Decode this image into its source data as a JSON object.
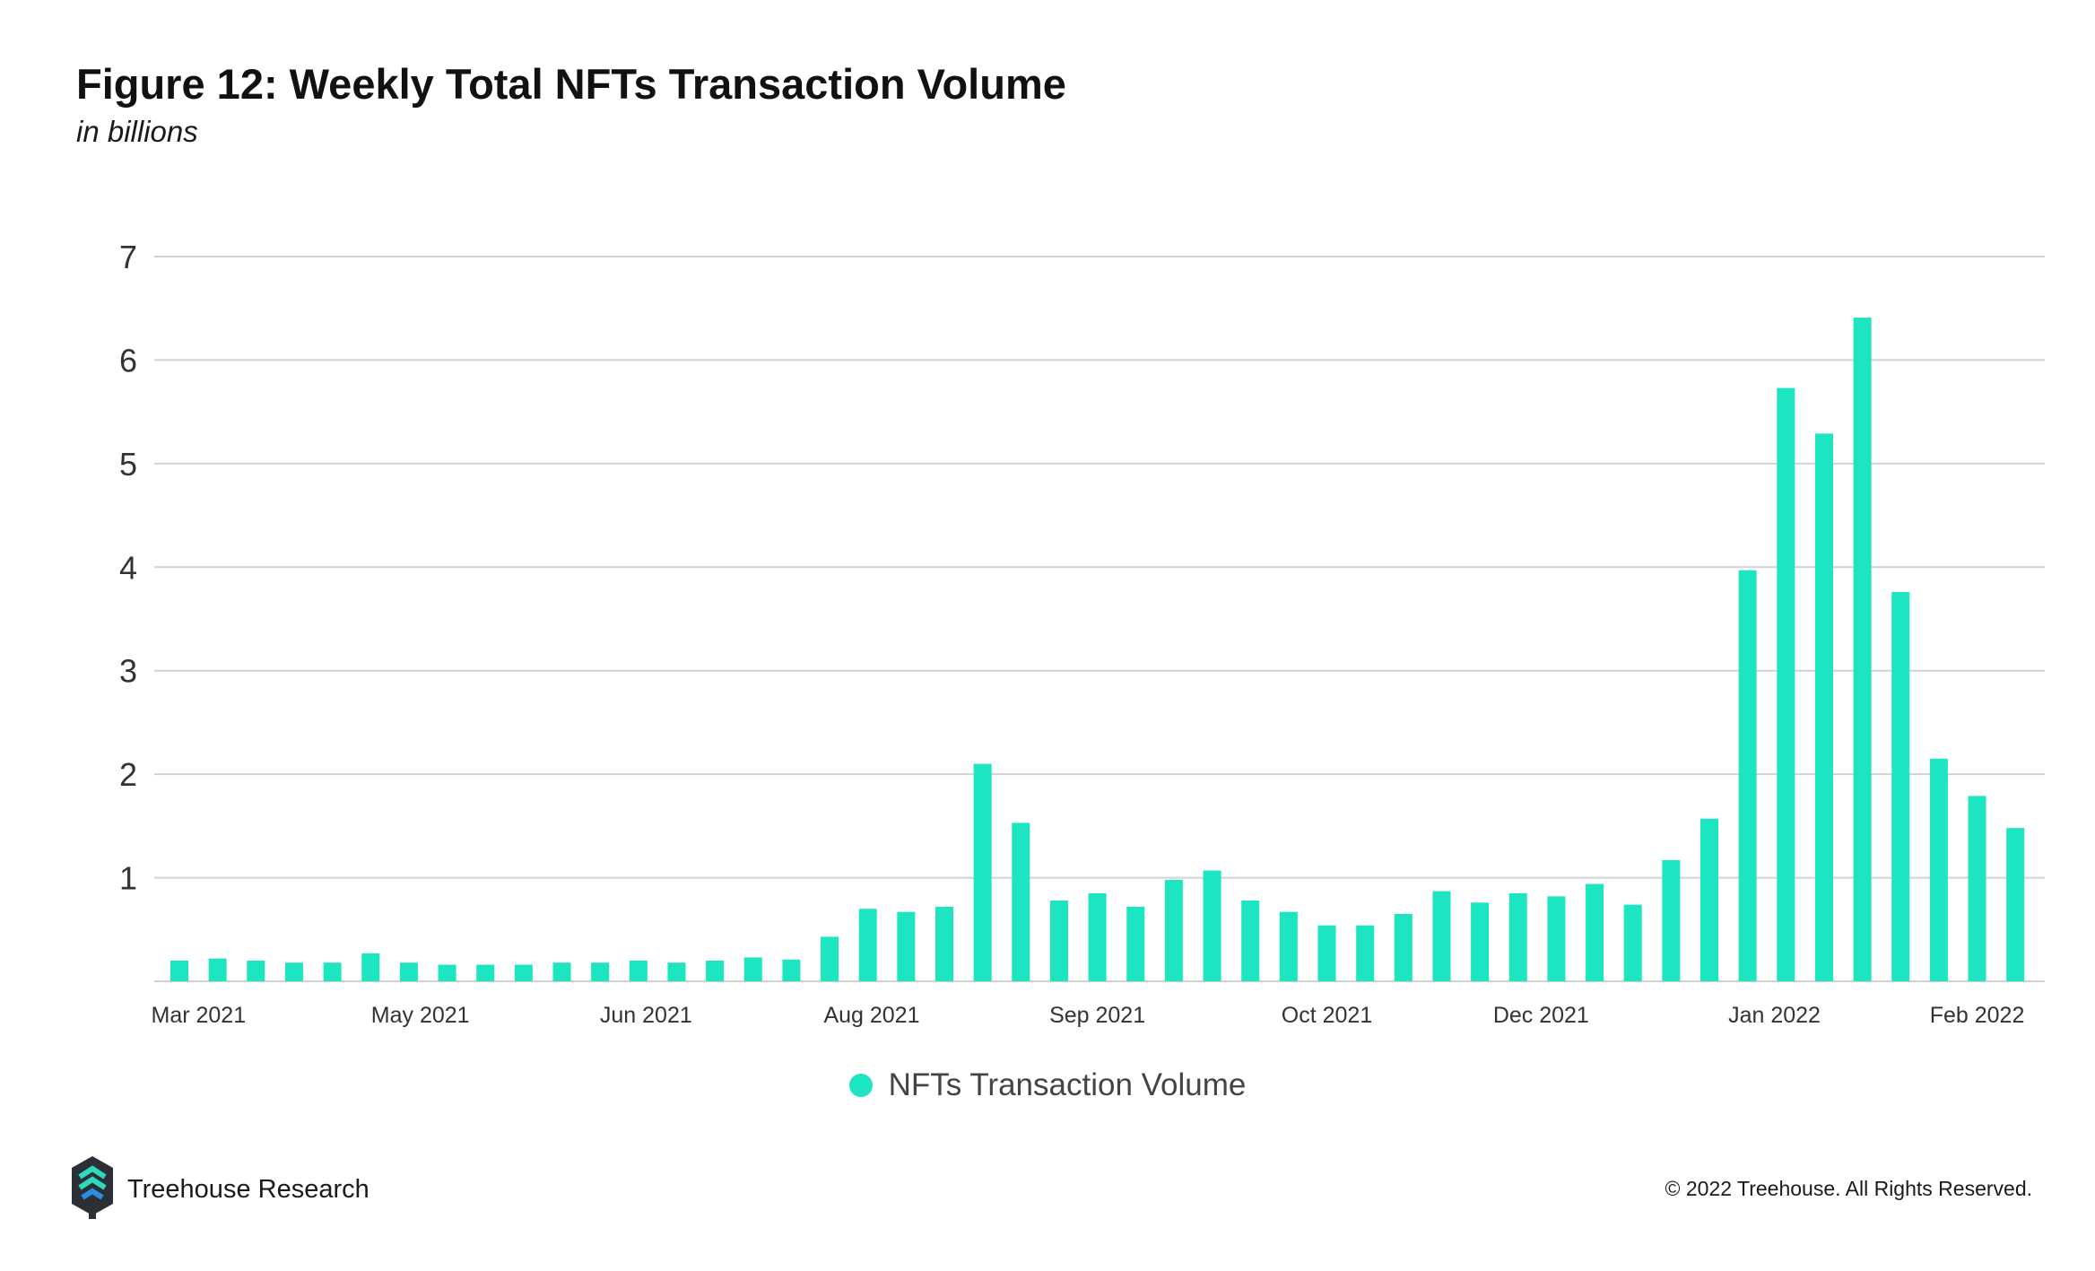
{
  "page": {
    "title": "Figure 12: Weekly Total NFTs Transaction Volume",
    "subtitle": "in billions",
    "brand_name": "Treehouse Research",
    "brand_logo_icon": "treehouse-logo-icon",
    "copyright": "© 2022 Treehouse. All Rights Reserved."
  },
  "colors": {
    "bar": "#1de5c1",
    "grid": "#d2d2d2",
    "axis_text": "#333333",
    "logo_dark": "#2b2f36",
    "logo_teal": "#2fd9c0",
    "logo_blue": "#2b8de0"
  },
  "chart_data": {
    "type": "bar",
    "title": "Figure 12: Weekly Total NFTs Transaction Volume",
    "subtitle": "in billions",
    "xlabel": "",
    "ylabel": "",
    "ylim": [
      0,
      7
    ],
    "yticks": [
      1,
      2,
      3,
      4,
      5,
      6,
      7
    ],
    "grid": true,
    "legend_position": "bottom-center",
    "x_tick_labels": [
      "Mar 2021",
      "May 2021",
      "Jun 2021",
      "Aug 2021",
      "Sep 2021",
      "Oct 2021",
      "Dec 2021",
      "Jan 2022",
      "Feb 2022"
    ],
    "x_tick_bar_index": [
      0.5,
      6.3,
      12.2,
      18.1,
      24.0,
      30.0,
      35.6,
      41.7,
      47.0
    ],
    "series": [
      {
        "name": "NFTs Transaction Volume",
        "values": [
          0.2,
          0.22,
          0.2,
          0.18,
          0.18,
          0.27,
          0.18,
          0.16,
          0.16,
          0.16,
          0.18,
          0.18,
          0.2,
          0.18,
          0.2,
          0.23,
          0.21,
          0.43,
          0.7,
          0.67,
          0.72,
          2.1,
          1.53,
          0.78,
          0.85,
          0.72,
          0.98,
          1.07,
          0.78,
          0.67,
          0.54,
          0.54,
          0.65,
          0.87,
          0.76,
          0.85,
          0.82,
          0.94,
          0.74,
          1.17,
          1.57,
          3.97,
          5.73,
          5.29,
          6.41,
          3.76,
          2.15,
          1.79,
          1.48
        ]
      }
    ]
  }
}
